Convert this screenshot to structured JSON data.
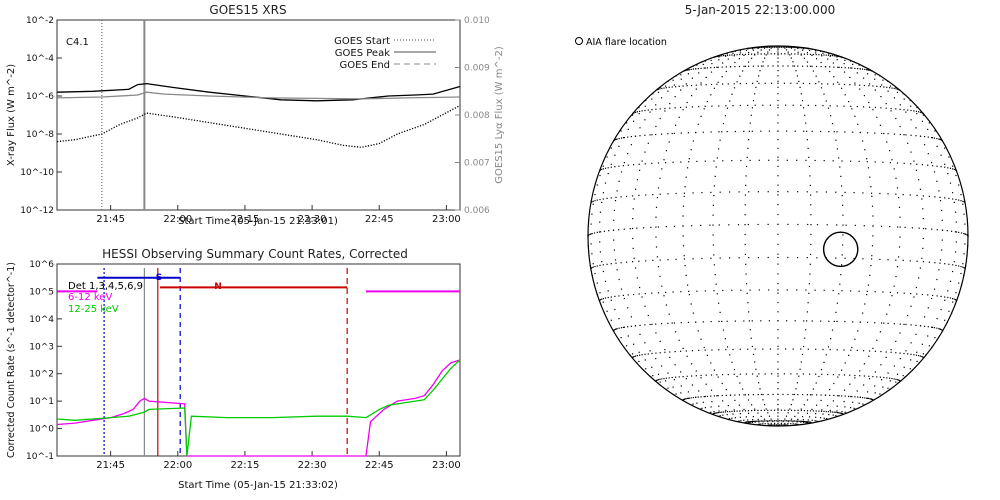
{
  "chart_data": [
    {
      "type": "line",
      "title": "GOES15 XRS",
      "xlabel": "Start Time (05-Jan-15 21:33:01)",
      "ylabel": "X-ray Flux (W m^-2)",
      "ylabel_right": "GOES15 Lyα Flux (W m^-2)",
      "annotation": "C4.1",
      "x_ticks": [
        "21:45",
        "22:00",
        "22:15",
        "22:30",
        "22:45",
        "23:00"
      ],
      "y_ticks": [
        "10^-2",
        "10^-4",
        "10^-6",
        "10^-8",
        "10^-10",
        "10^-12"
      ],
      "y_ticks_right": [
        "0.010",
        "0.009",
        "0.008",
        "0.007",
        "0.006"
      ],
      "legend": [
        "GOES Start",
        "GOES Peak",
        "GOES End"
      ],
      "legend_position": "top-right",
      "xlim_minutes": [
        21.98,
        112.0
      ],
      "ylim_log10": [
        -12,
        -2
      ],
      "ylim_right": [
        0.006,
        0.01
      ],
      "markers": {
        "start_minute": 32.0,
        "peak_minute": 41.5
      },
      "series": [
        {
          "color": "#000000",
          "x": [
            22,
            30,
            38,
            40,
            42,
            48,
            56,
            64,
            72,
            80,
            88,
            96,
            102,
            106,
            112
          ],
          "y": [
            -5.8,
            -5.75,
            -5.65,
            -5.4,
            -5.35,
            -5.55,
            -5.8,
            -6.0,
            -6.2,
            -6.25,
            -6.2,
            -6.0,
            -5.95,
            -5.9,
            -5.5
          ]
        },
        {
          "color": "#888888",
          "x": [
            22,
            32,
            40,
            42,
            46,
            56,
            70,
            90,
            100,
            112
          ],
          "y": [
            -6.1,
            -6.05,
            -5.95,
            -5.8,
            -5.9,
            -6.0,
            -6.1,
            -6.15,
            -6.1,
            -6.05
          ]
        },
        {
          "color": "#000000",
          "dotted": true,
          "x": [
            22,
            26,
            32,
            36,
            40,
            42,
            48,
            56,
            64,
            72,
            80,
            86,
            90,
            94,
            98,
            104,
            108,
            112
          ],
          "y": [
            -8.4,
            -8.3,
            -8.0,
            -7.5,
            -7.15,
            -6.9,
            -7.1,
            -7.4,
            -7.7,
            -8.0,
            -8.3,
            -8.6,
            -8.7,
            -8.5,
            -8.0,
            -7.5,
            -7.0,
            -6.5
          ]
        }
      ]
    },
    {
      "type": "line",
      "title": "HESSI Observing Summary Count Rates, Corrected",
      "xlabel": "Start Time (05-Jan-15 21:33:02)",
      "ylabel": "Corrected Count Rate (s^-1 detector^-1)",
      "legend": [
        "Det 1,3,4,5,6,9",
        "6-12 keV",
        "12-25 keV"
      ],
      "legend_position": "top-left",
      "x_ticks": [
        "21:45",
        "22:00",
        "22:15",
        "22:30",
        "22:45",
        "23:00"
      ],
      "y_ticks": [
        "10^6",
        "10^5",
        "10^4",
        "10^3",
        "10^2",
        "10^1",
        "10^0",
        "10^-1"
      ],
      "xlim_minutes": [
        21.98,
        112.0
      ],
      "ylim_log10": [
        -1,
        6
      ],
      "flag_labels": {
        "saa": "S",
        "night": "N"
      },
      "vlines": [
        {
          "minute": 32.5,
          "color": "#0000cc",
          "dash": "2,2"
        },
        {
          "minute": 41.5,
          "color": "#888888",
          "dash": ""
        },
        {
          "minute": 44.5,
          "color": "#cc0000",
          "dash": ""
        },
        {
          "minute": 49.5,
          "color": "#0000cc",
          "dash": "5,4"
        },
        {
          "minute": 86.8,
          "color": "#cc0000",
          "dash": "6,4"
        }
      ],
      "bars": [
        {
          "color": "#0000cc",
          "x0": 31.0,
          "x1": 49.5,
          "y": 5.5
        },
        {
          "color": "#cc0000",
          "x0": 45.0,
          "x1": 86.8,
          "y": 5.15
        },
        {
          "color": "#ee00ee",
          "x0": 22.0,
          "x1": 31.0,
          "y": 5.0
        },
        {
          "color": "#ee00ee",
          "x0": 91.0,
          "x1": 112.0,
          "y": 5.0
        }
      ],
      "series": [
        {
          "name": "6-12 keV",
          "color": "#ee00ee",
          "x": [
            22,
            26,
            30,
            34,
            37,
            39,
            40.5,
            41.5,
            42.5,
            50.5,
            51.0,
            60,
            70,
            76,
            82,
            86.8,
            91,
            92,
            95,
            98,
            102,
            104,
            106,
            108,
            110,
            112
          ],
          "y": [
            0.15,
            0.2,
            0.3,
            0.4,
            0.55,
            0.7,
            1.0,
            1.1,
            1.0,
            0.9,
            -1.0,
            -1.0,
            -1.0,
            -1.0,
            -1.0,
            -1.0,
            -1.0,
            0.25,
            0.7,
            1.0,
            1.1,
            1.2,
            1.6,
            2.1,
            2.4,
            2.5
          ]
        },
        {
          "name": "12-25 keV",
          "color": "#00cc00",
          "x": [
            22,
            26,
            30,
            34,
            38,
            41.5,
            42.5,
            50.5,
            51.0,
            52,
            60,
            70,
            80,
            86.8,
            91,
            92,
            94,
            96,
            100,
            104,
            106,
            108,
            110,
            112
          ],
          "y": [
            0.35,
            0.3,
            0.35,
            0.4,
            0.45,
            0.6,
            0.7,
            0.75,
            -1.0,
            0.45,
            0.4,
            0.4,
            0.45,
            0.45,
            0.4,
            0.5,
            0.7,
            0.85,
            0.95,
            1.05,
            1.4,
            1.8,
            2.2,
            2.5
          ]
        }
      ]
    },
    {
      "type": "scatter",
      "title": "5-Jan-2015 22:13:00.000",
      "legend": [
        "AIA flare location"
      ],
      "flare_location_disk_fraction": [
        0.33,
        0.07
      ],
      "flare_radius_disk_fraction": 0.09
    }
  ]
}
